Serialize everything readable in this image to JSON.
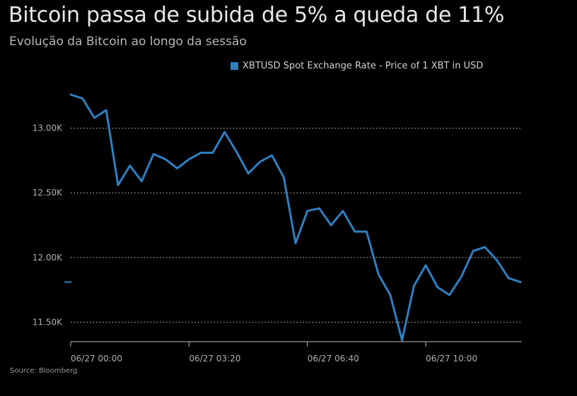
{
  "title": "Bitcoin passa de subida de 5% a queda de 11%",
  "subtitle": "Evolução da Bitcoin ao longo da sessão",
  "source": "Source: Bloomberg",
  "colors": {
    "background": "#000000",
    "series": "#2f7fc1",
    "grid": "#cfcfcf"
  },
  "chart_data": {
    "type": "line",
    "title": "Bitcoin passa de subida de 5% a queda de 11%",
    "subtitle": "Evolução da Bitcoin ao longo da sessão",
    "legend": "top",
    "grid": "horizontal dotted",
    "y_ticks": [
      {
        "value": 13000,
        "label": "13.00K"
      },
      {
        "value": 12500,
        "label": "12.50K"
      },
      {
        "value": 12000,
        "label": "12.00K"
      },
      {
        "value": 11500,
        "label": "11.50K"
      }
    ],
    "x_ticks": [
      {
        "index": 0,
        "label": "06/27 00:00"
      },
      {
        "index": 10,
        "label": "06/27 03:20"
      },
      {
        "index": 20,
        "label": "06/27 06:40"
      },
      {
        "index": 30,
        "label": "06/27 10:00"
      }
    ],
    "ylim": [
      11360,
      13380
    ],
    "series": [
      {
        "name": "XBTUSD Spot Exchange Rate - Price of 1 XBT in USD",
        "values": [
          13260,
          13230,
          13080,
          13140,
          12560,
          12710,
          12590,
          12800,
          12760,
          12690,
          12760,
          12810,
          12810,
          12970,
          12820,
          12650,
          12740,
          12790,
          12620,
          12110,
          12360,
          12380,
          12250,
          12360,
          12200,
          12200,
          11870,
          11710,
          11360,
          11780,
          11940,
          11770,
          11710,
          11850,
          12050,
          12080,
          11980,
          11840,
          11810
        ]
      }
    ]
  }
}
